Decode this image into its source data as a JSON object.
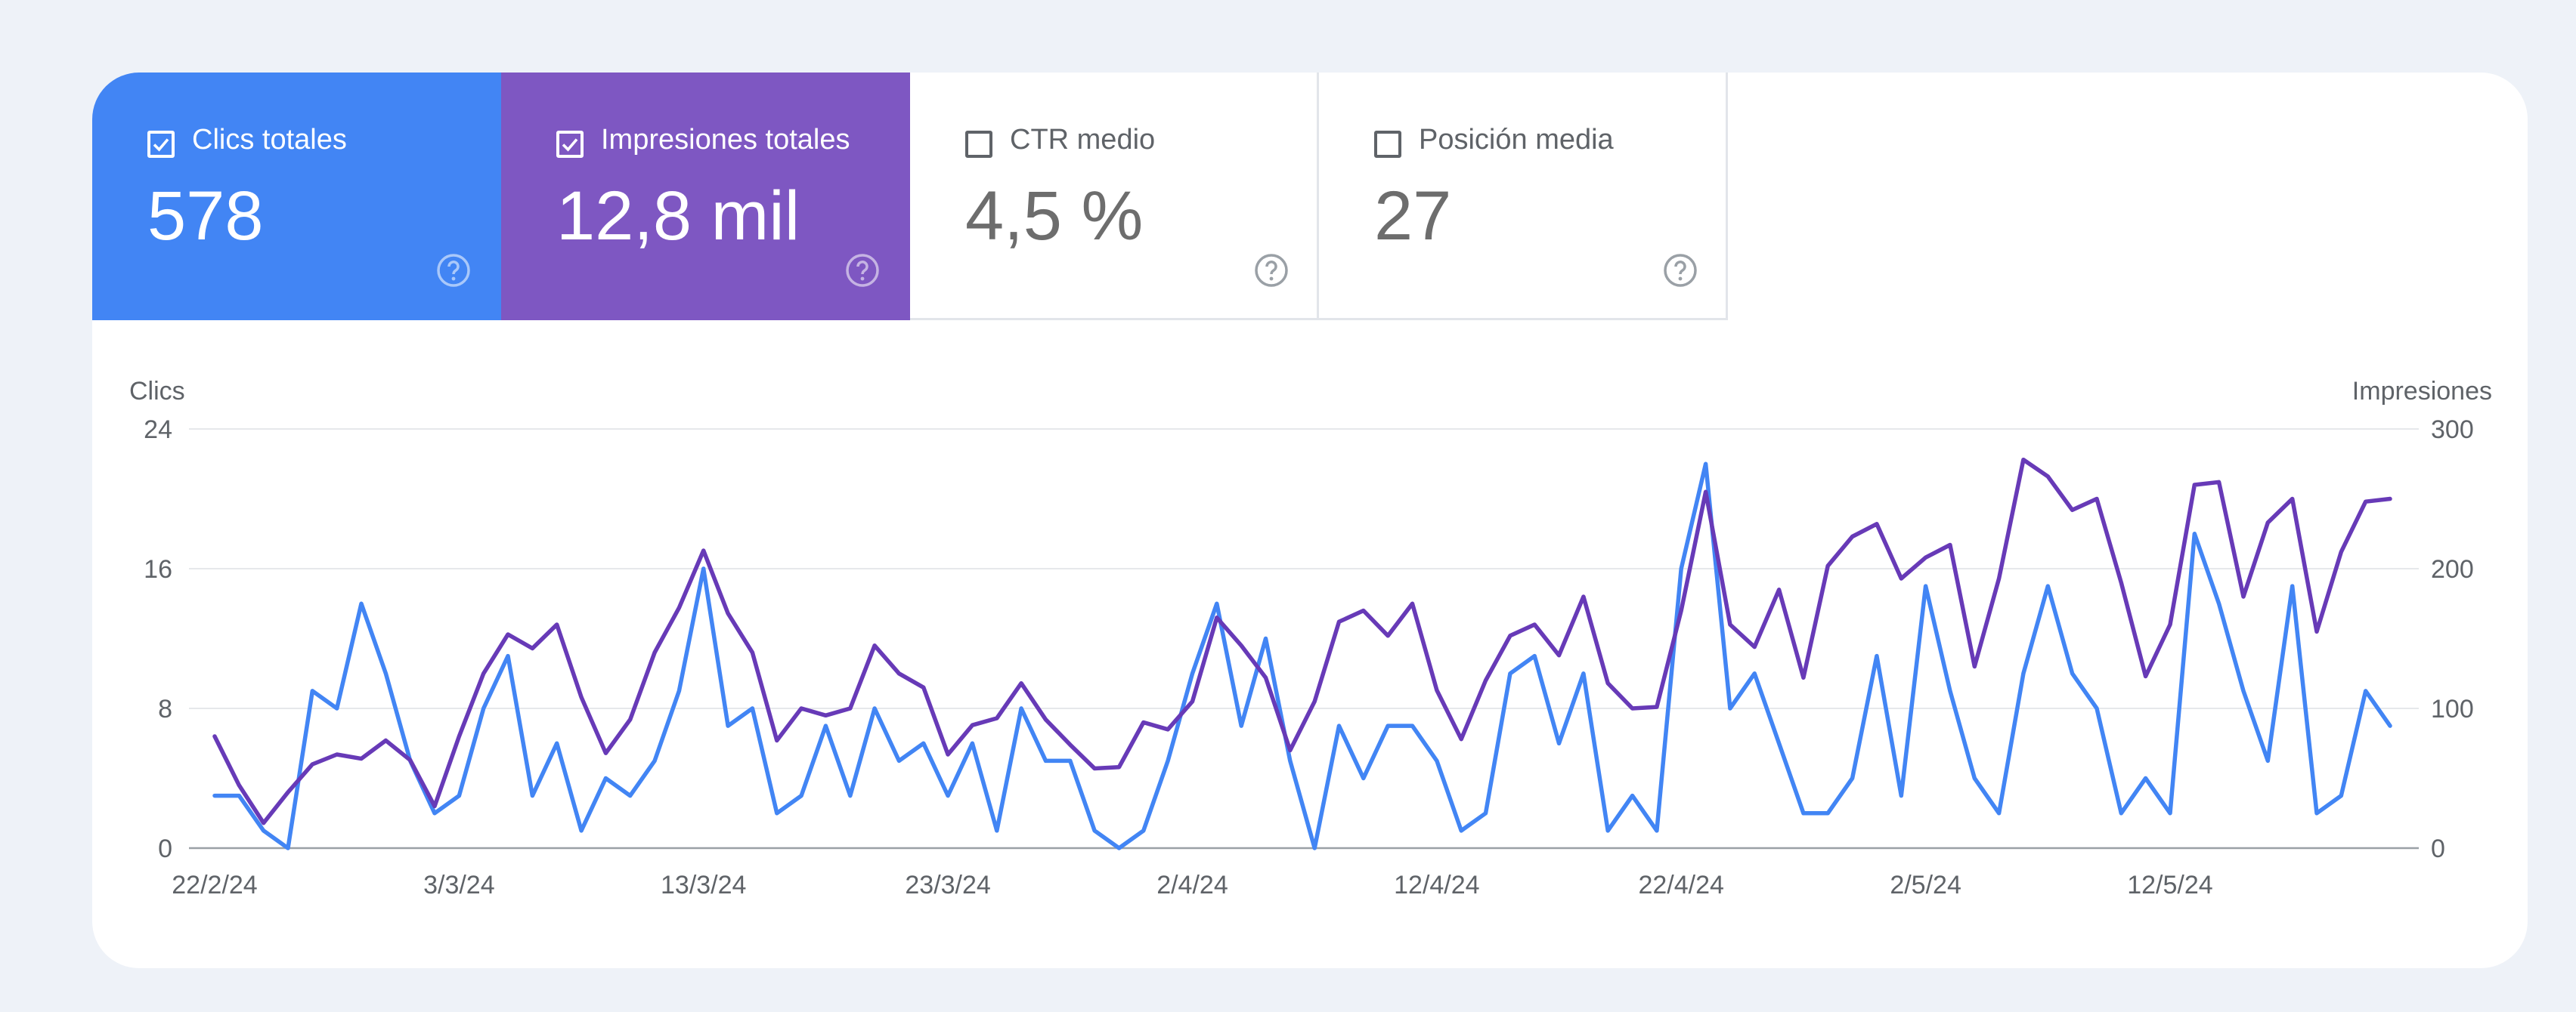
{
  "metrics": [
    {
      "label": "Clics totales",
      "value": "578",
      "checked": true,
      "color": "#4285f4"
    },
    {
      "label": "Impresiones totales",
      "value": "12,8 mil",
      "checked": true,
      "color": "#7e57c2"
    },
    {
      "label": "CTR medio",
      "value": "4,5 %",
      "checked": false
    },
    {
      "label": "Posición media",
      "value": "27",
      "checked": false
    }
  ],
  "chart_data": {
    "type": "line",
    "left_axis_title": "Clics",
    "right_axis_title": "Impresiones",
    "y_left_ticks": [
      "0",
      "8",
      "16",
      "24"
    ],
    "y_right_ticks": [
      "0",
      "100",
      "200",
      "300"
    ],
    "ylim_left": [
      0,
      24
    ],
    "ylim_right": [
      0,
      300
    ],
    "x_start": "22/2/24",
    "x_tick_labels": [
      "22/2/24",
      "3/3/24",
      "13/3/24",
      "23/3/24",
      "2/4/24",
      "12/4/24",
      "22/4/24",
      "2/5/24",
      "12/5/24"
    ],
    "grid": true,
    "series": [
      {
        "name": "Clics",
        "axis": "left",
        "color": "#4285f4",
        "values": [
          3,
          3,
          1,
          0,
          9,
          8,
          14,
          10,
          5,
          2,
          3,
          8,
          11,
          3,
          6,
          1,
          4,
          3,
          5,
          9,
          16,
          7,
          8,
          2,
          3,
          7,
          3,
          8,
          5,
          6,
          3,
          6,
          1,
          8,
          5,
          5,
          1,
          0,
          1,
          5,
          10,
          14,
          7,
          12,
          5,
          0,
          7,
          4,
          7,
          7,
          5,
          1,
          2,
          10,
          11,
          6,
          10,
          1,
          3,
          1,
          16,
          22,
          8,
          10,
          6,
          2,
          2,
          4,
          11,
          3,
          15,
          9,
          4,
          2,
          10,
          15,
          10,
          8,
          2,
          4,
          2,
          18,
          14,
          9,
          5,
          15,
          2,
          3,
          9,
          7
        ]
      },
      {
        "name": "Impresiones",
        "axis": "right",
        "color": "#673ab7",
        "values": [
          80,
          45,
          18,
          40,
          60,
          67,
          64,
          77,
          63,
          30,
          80,
          125,
          153,
          143,
          160,
          108,
          68,
          92,
          140,
          172,
          213,
          168,
          140,
          77,
          100,
          95,
          100,
          145,
          125,
          115,
          67,
          88,
          93,
          118,
          92,
          74,
          57,
          58,
          90,
          85,
          105,
          165,
          145,
          122,
          70,
          105,
          162,
          170,
          152,
          175,
          113,
          78,
          120,
          152,
          160,
          138,
          180,
          118,
          100,
          101,
          170,
          255,
          160,
          144,
          185,
          122,
          202,
          223,
          232,
          193,
          208,
          217,
          130,
          193,
          278,
          266,
          242,
          250,
          190,
          123,
          160,
          260,
          262,
          180,
          233,
          250,
          155,
          212,
          248,
          250
        ]
      }
    ]
  }
}
